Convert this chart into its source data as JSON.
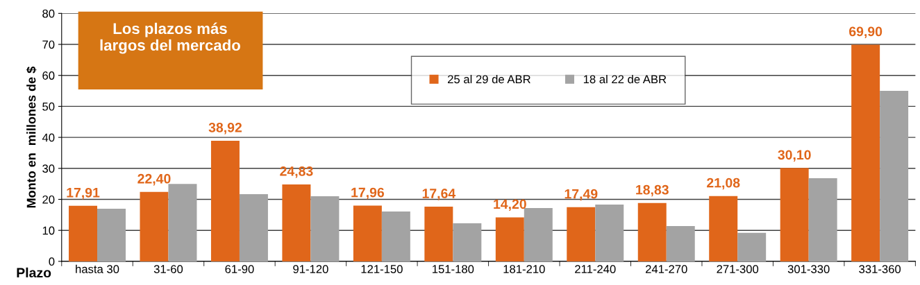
{
  "chart_data": {
    "type": "bar",
    "ylabel": "Monto en  millones de $",
    "xlabel": "Plazo",
    "categories": [
      "hasta 30",
      "31-60",
      "61-90",
      "91-120",
      "121-150",
      "151-180",
      "181-210",
      "211-240",
      "241-270",
      "271-300",
      "301-330",
      "331-360"
    ],
    "series": [
      {
        "name": "25 al 29 de ABR",
        "color": "#e0661a",
        "values": [
          17.91,
          22.4,
          38.92,
          24.83,
          17.96,
          17.64,
          14.2,
          17.49,
          18.83,
          21.08,
          30.1,
          69.9
        ],
        "value_labels": [
          "17,91",
          "22,40",
          "38,92",
          "24,83",
          "17,96",
          "17,64",
          "14,20",
          "17,49",
          "18,83",
          "21,08",
          "30,10",
          "69,90"
        ]
      },
      {
        "name": "18 al 22 de ABR",
        "color": "#a3a3a3",
        "values": [
          17.0,
          25.0,
          21.7,
          21.0,
          16.1,
          12.3,
          17.2,
          18.3,
          11.4,
          9.2,
          26.8,
          55.0
        ]
      }
    ],
    "ylim": [
      0,
      80
    ],
    "yticks": [
      0,
      10,
      20,
      30,
      40,
      50,
      60,
      70,
      80
    ],
    "grid": "y",
    "legend": "top",
    "annotations": [
      "Los plazos más\nlargos del mercado"
    ]
  }
}
